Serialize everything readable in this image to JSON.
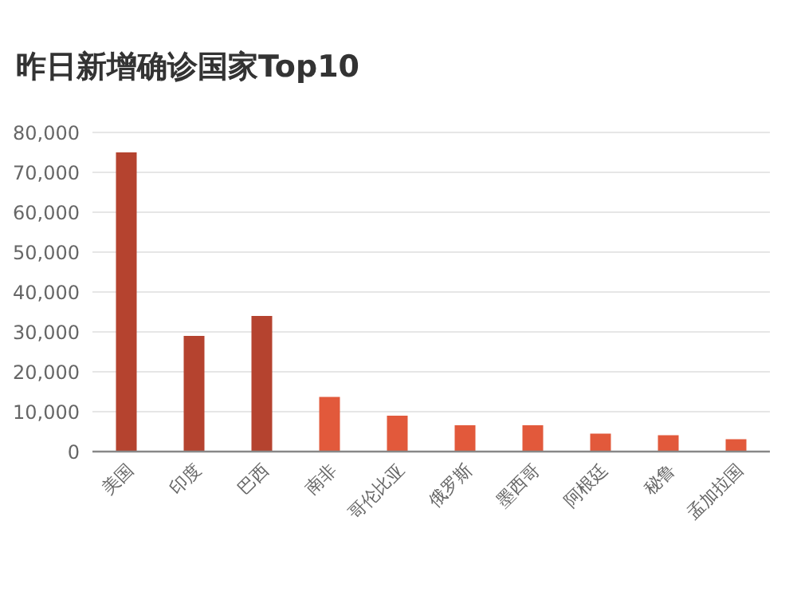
{
  "chart_data": {
    "type": "bar",
    "title": "昨日新增确诊国家Top10",
    "categories": [
      "美国",
      "印度",
      "巴西",
      "南非",
      "哥伦比亚",
      "俄罗斯",
      "墨西哥",
      "阿根廷",
      "秘鲁",
      "孟加拉国"
    ],
    "values": [
      75000,
      29000,
      34000,
      13700,
      9000,
      6600,
      6600,
      4500,
      4100,
      3100
    ],
    "colors": [
      "#b5432f",
      "#b5432f",
      "#b5432f",
      "#e2593b",
      "#e2593b",
      "#e2593b",
      "#e2593b",
      "#e2593b",
      "#e2593b",
      "#e2593b"
    ],
    "ylim": [
      0,
      80000
    ],
    "yticks": [
      0,
      {
        "value": 10000,
        "label": "10,000"
      },
      {
        "value": 20000,
        "label": "20,000"
      },
      {
        "value": 30000,
        "label": "30,000"
      },
      {
        "value": 40000,
        "label": "40,000"
      },
      {
        "value": 50000,
        "label": "50,000"
      },
      {
        "value": 60000,
        "label": "60,000"
      },
      {
        "value": 70000,
        "label": "70,000"
      },
      {
        "value": 80000,
        "label": "80,000"
      }
    ],
    "grid": "y"
  }
}
